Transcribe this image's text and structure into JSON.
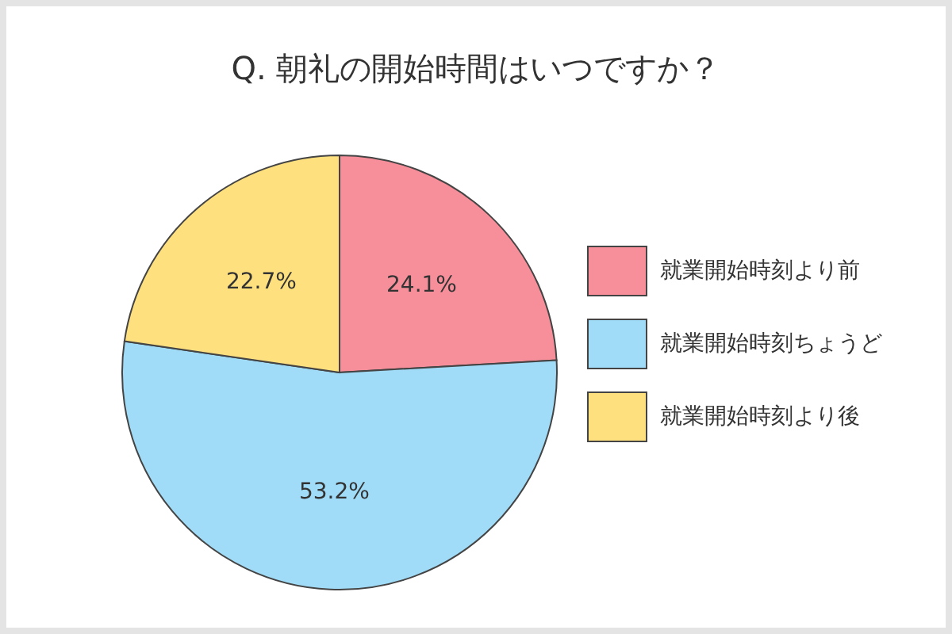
{
  "chart_data": {
    "type": "pie",
    "title": "Q. 朝礼の開始時間はいつですか？",
    "categories": [
      "就業開始時刻より前",
      "就業開始時刻ちょうど",
      "就業開始時刻より後"
    ],
    "values": [
      24.1,
      53.2,
      22.7
    ],
    "value_labels": [
      "24.1%",
      "53.2%",
      "22.7%"
    ],
    "colors": [
      "#f78f9b",
      "#a0dcf8",
      "#ffe07f"
    ],
    "legend": "right"
  }
}
